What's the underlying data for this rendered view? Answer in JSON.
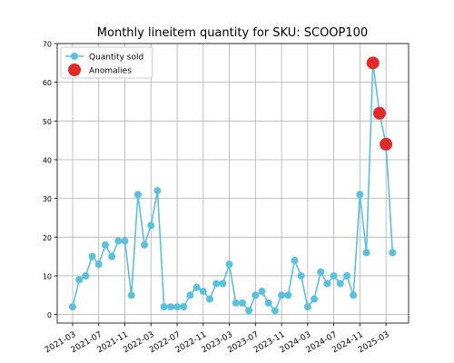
{
  "chart_data": {
    "type": "line",
    "title": "Monthly lineitem quantity for SKU: SCOOP100",
    "x": [
      "2021-03",
      "2021-04",
      "2021-05",
      "2021-06",
      "2021-07",
      "2021-08",
      "2021-09",
      "2021-10",
      "2021-11",
      "2021-12",
      "2022-01",
      "2022-02",
      "2022-03",
      "2022-04",
      "2022-05",
      "2022-06",
      "2022-07",
      "2022-08",
      "2022-09",
      "2022-10",
      "2022-11",
      "2022-12",
      "2023-01",
      "2023-02",
      "2023-03",
      "2023-04",
      "2023-05",
      "2023-06",
      "2023-07",
      "2023-08",
      "2023-09",
      "2023-10",
      "2023-11",
      "2023-12",
      "2024-01",
      "2024-02",
      "2024-03",
      "2024-04",
      "2024-05",
      "2024-06",
      "2024-07",
      "2024-08",
      "2024-09",
      "2024-10",
      "2024-11",
      "2024-12",
      "2025-01",
      "2025-02",
      "2025-03",
      "2025-04"
    ],
    "series": [
      {
        "name": "Quantity sold",
        "color": "#5bc0de",
        "values": [
          2,
          9,
          10,
          15,
          13,
          18,
          15,
          19,
          19,
          5,
          31,
          18,
          23,
          32,
          2,
          2,
          2,
          2,
          5,
          7,
          6,
          4,
          8,
          8,
          13,
          3,
          3,
          1,
          5,
          6,
          3,
          1,
          5,
          5,
          14,
          10,
          2,
          4,
          11,
          8,
          10,
          8,
          10,
          5,
          31,
          16,
          65,
          52,
          44,
          16
        ]
      },
      {
        "name": "Anomalies",
        "color": "#e02b2b",
        "x": [
          "2025-01",
          "2025-02",
          "2025-03"
        ],
        "values": [
          65,
          52,
          44
        ]
      }
    ],
    "xticks": [
      "2021-03",
      "2021-07",
      "2021-11",
      "2022-03",
      "2022-07",
      "2022-11",
      "2023-03",
      "2023-07",
      "2023-11",
      "2024-03",
      "2024-07",
      "2024-11",
      "2025-03"
    ],
    "ylim": [
      -2.2,
      70
    ],
    "yticks": [
      0,
      10,
      20,
      30,
      40,
      50,
      60,
      70
    ],
    "grid": true,
    "legend": "upper left"
  }
}
